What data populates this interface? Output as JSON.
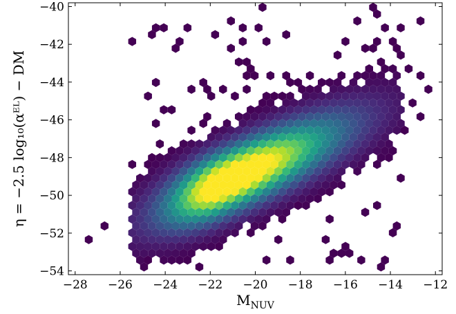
{
  "chart_data": {
    "type": "hexbin",
    "xlabel": "M",
    "xlabel_sub": "NUV",
    "ylabel": "η = −2.5 log₁₀(αᴱᴸ) − DM",
    "xlim": [
      -28.3,
      -11.7
    ],
    "ylim": [
      -54.2,
      -39.8
    ],
    "xticks": [
      -28,
      -26,
      -24,
      -22,
      -20,
      -18,
      -16,
      -14,
      -12
    ],
    "xtick_labels": [
      "−28",
      "−26",
      "−24",
      "−22",
      "−20",
      "−18",
      "−16",
      "−14",
      "−12"
    ],
    "yticks": [
      -54,
      -52,
      -50,
      -48,
      -46,
      -44,
      -42,
      -40
    ],
    "ytick_labels": [
      "−54",
      "−52",
      "−50",
      "−48",
      "−46",
      "−44",
      "−42",
      "−40"
    ],
    "colormap": "viridis",
    "color_stops": [
      "#440154",
      "#482878",
      "#3e4a89",
      "#31688e",
      "#26828e",
      "#1f9e89",
      "#35b779",
      "#6ece58",
      "#b5de2b",
      "#fde725"
    ],
    "density_model": {
      "ridge_slope": 0.52,
      "ridge_intercept": -38.2,
      "peak": [
        -21.3,
        -49.3
      ],
      "extent_x": [
        -25.5,
        -13.5
      ]
    },
    "sparse_bins": [
      [
        -27.4,
        -52.4
      ],
      [
        -26.6,
        -51.8
      ],
      [
        -25.3,
        -53.2
      ],
      [
        -25.0,
        -52.9
      ],
      [
        -24.6,
        -53.5
      ],
      [
        -23.7,
        -53.5
      ],
      [
        -24.2,
        -45.6
      ],
      [
        -23.6,
        -45.6
      ],
      [
        -23.0,
        -46.7
      ],
      [
        -24.5,
        -48.0
      ],
      [
        -22.3,
        -43.9
      ],
      [
        -21.8,
        -44.6
      ],
      [
        -21.0,
        -44.9
      ],
      [
        -20.5,
        -44.3
      ],
      [
        -19.3,
        -43.6
      ],
      [
        -18.2,
        -44.0
      ],
      [
        -17.4,
        -43.5
      ],
      [
        -16.2,
        -42.6
      ],
      [
        -15.9,
        -41.9
      ],
      [
        -15.1,
        -42.3
      ],
      [
        -14.6,
        -42.1
      ],
      [
        -13.9,
        -41.9
      ],
      [
        -14.5,
        -40.5
      ],
      [
        -13.5,
        -41.2
      ],
      [
        -12.7,
        -40.9
      ],
      [
        -13.4,
        -42.6
      ],
      [
        -13.2,
        -43.4
      ],
      [
        -12.8,
        -43.7
      ],
      [
        -12.4,
        -44.4
      ],
      [
        -13.0,
        -45.0
      ],
      [
        -12.6,
        -46.0
      ],
      [
        -13.3,
        -46.6
      ],
      [
        -14.0,
        -47.3
      ],
      [
        -14.7,
        -47.6
      ],
      [
        -15.3,
        -48.3
      ],
      [
        -16.2,
        -48.4
      ],
      [
        -16.7,
        -48.0
      ],
      [
        -17.6,
        -49.1
      ],
      [
        -18.4,
        -49.8
      ],
      [
        -18.2,
        -50.7
      ],
      [
        -19.0,
        -49.9
      ],
      [
        -19.4,
        -51.0
      ],
      [
        -20.0,
        -51.4
      ],
      [
        -21.2,
        -51.6
      ],
      [
        -22.0,
        -52.4
      ],
      [
        -22.8,
        -52.6
      ],
      [
        -22.0,
        -45.9
      ],
      [
        -21.2,
        -46.4
      ],
      [
        -20.0,
        -45.7
      ],
      [
        -19.6,
        -44.9
      ],
      [
        -18.4,
        -45.3
      ],
      [
        -23.3,
        -49.3
      ],
      [
        -24.0,
        -49.5
      ],
      [
        -24.4,
        -50.5
      ],
      [
        -24.8,
        -51.6
      ]
    ]
  }
}
